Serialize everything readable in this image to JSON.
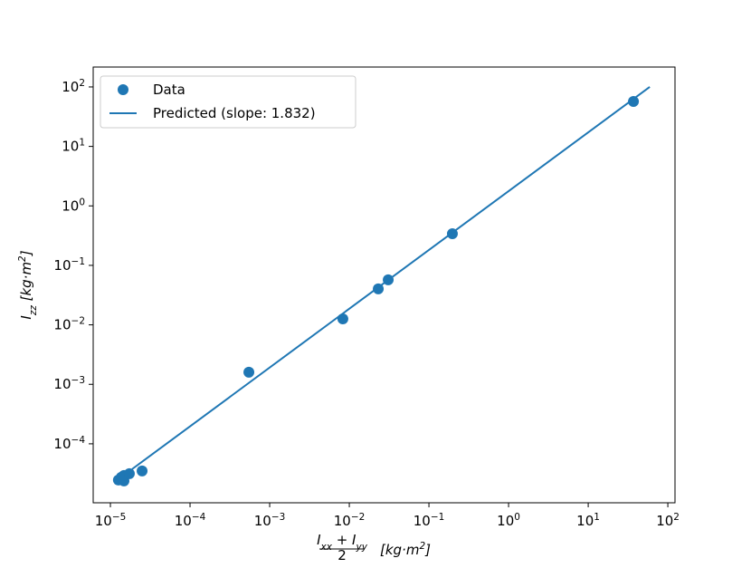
{
  "chart_data": {
    "type": "scatter",
    "xlabel": {
      "numerator": "I_{xx} + I_{yy}",
      "denominator": "2",
      "unit": "[kg·m^{2}]"
    },
    "ylabel": "I_{zz}  [kg·m^{2}]",
    "xscale": "log",
    "yscale": "log",
    "xlim": [
      6.08e-06,
      123
    ],
    "ylim": [
      1.02e-05,
      216
    ],
    "xticks": [
      {
        "value": 1e-05,
        "label": "10^{−5}"
      },
      {
        "value": 0.0001,
        "label": "10^{−4}"
      },
      {
        "value": 0.001,
        "label": "10^{−3}"
      },
      {
        "value": 0.01,
        "label": "10^{−2}"
      },
      {
        "value": 0.1,
        "label": "10^{−1}"
      },
      {
        "value": 1,
        "label": "10^{0}"
      },
      {
        "value": 10,
        "label": "10^{1}"
      },
      {
        "value": 100,
        "label": "10^{2}"
      }
    ],
    "yticks": [
      {
        "value": 0.0001,
        "label": "10^{−4}"
      },
      {
        "value": 0.001,
        "label": "10^{−3}"
      },
      {
        "value": 0.01,
        "label": "10^{−2}"
      },
      {
        "value": 0.1,
        "label": "10^{−1}"
      },
      {
        "value": 1,
        "label": "10^{0}"
      },
      {
        "value": 10,
        "label": "10^{1}"
      },
      {
        "value": 100,
        "label": "10^{2}"
      }
    ],
    "legend": "upper left",
    "series": [
      {
        "name": "Data",
        "type": "scatter",
        "color": "#1f77b4",
        "x": [
          1.26e-05,
          1.37e-05,
          1.48e-05,
          1.48e-05,
          1.73e-05,
          2.5e-05,
          0.000548,
          0.0083,
          0.0231,
          0.0308,
          0.197,
          37
        ],
        "values": [
          2.46e-05,
          2.73e-05,
          2.38e-05,
          2.93e-05,
          3.15e-05,
          3.49e-05,
          0.0016,
          0.0126,
          0.0402,
          0.0571,
          0.341,
          57
        ]
      },
      {
        "name": "Predicted (slope: 1.832)",
        "type": "line",
        "color": "#1f77b4",
        "x": [
          1.87e-05,
          59.3
        ],
        "values": [
          3.75e-05,
          100
        ]
      }
    ]
  }
}
